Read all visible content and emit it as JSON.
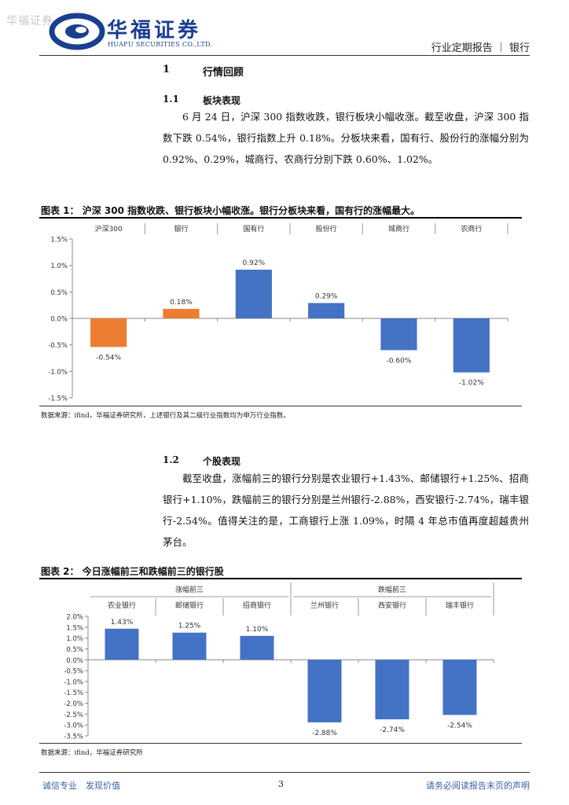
{
  "header": {
    "watermark": "华福证券",
    "brand_cn": "华福证券",
    "brand_en": "HUAFU SECURITIES CO.,LTD.",
    "report_type": "行业定期报告 ｜ 银行",
    "brand_color": "#1a3f8e"
  },
  "section1": {
    "number": "1",
    "title": "行情回顾",
    "sub1": {
      "number": "1.1",
      "title": "板块表现",
      "paragraph": "6 月 24 日，沪深 300 指数收跌，银行板块小幅收涨。截至收盘，沪深 300 指数下跌 0.54%，银行指数上升 0.18%。分板块来看，国有行、股份行的涨幅分别为 0.92%、0.29%，城商行、农商行分别下跌 0.60%、1.02%。"
    },
    "sub2": {
      "number": "1.2",
      "title": "个股表现",
      "paragraph": "截至收盘，涨幅前三的银行分别是农业银行+1.43%、邮储银行+1.25%、招商银行+1.10%，跌幅前三的银行分别是兰州银行-2.88%，西安银行-2.74%，瑞丰银行-2.54%。值得关注的是，工商银行上涨 1.09%，时隔 4 年总市值再度超越贵州茅台。"
    }
  },
  "figure1": {
    "title": "图表 1： 沪深 300 指数收跌、银行板块小幅收涨。银行分板块来看，国有行的涨幅最大。",
    "source": "数据来源：ifind，华福证券研究所，上述银行及其二级行业指数均为申万行业指数。"
  },
  "figure2": {
    "title": "图表 2： 今日涨幅前三和跌幅前三的银行股",
    "group_labels": [
      "涨幅前三",
      "跌幅前三"
    ],
    "source": "数据来源：ifind，华福证券研究所"
  },
  "chart_data": [
    {
      "type": "bar",
      "categories": [
        "沪深300",
        "银行",
        "国有行",
        "股份行",
        "城商行",
        "农商行"
      ],
      "values": [
        -0.54,
        0.18,
        0.92,
        0.29,
        -0.6,
        -1.02
      ],
      "data_labels": [
        "-0.54%",
        "0.18%",
        "0.92%",
        "0.29%",
        "-0.60%",
        "-1.02%"
      ],
      "colors": [
        "#ed7d31",
        "#ed7d31",
        "#4472c4",
        "#4472c4",
        "#4472c4",
        "#4472c4"
      ],
      "yticks": [
        "1.5%",
        "1.0%",
        "0.5%",
        "0.0%",
        "-0.5%",
        "-1.0%",
        "-1.5%"
      ],
      "ylim": [
        -1.5,
        1.5
      ],
      "category_position": "top",
      "grid": false
    },
    {
      "type": "bar",
      "categories": [
        "农业银行",
        "邮储银行",
        "招商银行",
        "兰州银行",
        "西安银行",
        "瑞丰银行"
      ],
      "values": [
        1.43,
        1.25,
        1.1,
        -2.88,
        -2.74,
        -2.54
      ],
      "data_labels": [
        "1.43%",
        "1.25%",
        "1.10%",
        "-2.88%",
        "-2.74%",
        "-2.54%"
      ],
      "colors": [
        "#4472c4",
        "#4472c4",
        "#4472c4",
        "#4472c4",
        "#4472c4",
        "#4472c4"
      ],
      "yticks": [
        "2.0%",
        "1.5%",
        "1.0%",
        "0.5%",
        "0.0%",
        "-0.5%",
        "-1.0%",
        "-1.5%",
        "-2.0%",
        "-2.5%",
        "-3.0%",
        "-3.5%"
      ],
      "ylim": [
        -3.5,
        2.0
      ],
      "category_position": "top",
      "grid": false
    }
  ],
  "footer": {
    "left": "诚信专业　发现价值",
    "page": "3",
    "right": "请务必阅读报告末页的声明"
  }
}
